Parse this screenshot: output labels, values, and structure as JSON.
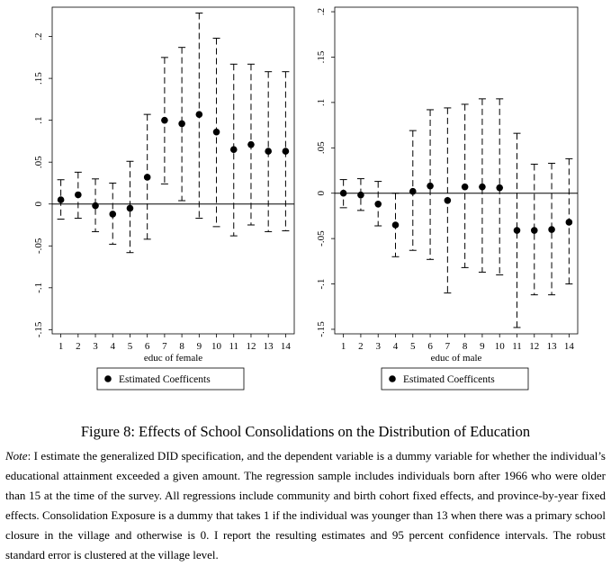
{
  "figure": {
    "title": "Figure 8: Effects of School Consolidations on the Distribution of Education",
    "note_lead": "Note",
    "note_text": ": I estimate the generalized DID specification, and the dependent variable is a dummy variable for whether the individual’s educational attainment exceeded a given amount. The regression sample includes individuals born after 1966 who were older than 15 at the time of the survey. All regressions include community and birth cohort fixed effects, and province-by-year fixed effects. Consolidation Exposure is a dummy that takes 1 if the individual was younger than 13 when there was a primary school closure in the village and otherwise is 0. I report the resulting estimates and 95 percent confidence intervals. The robust standard error is clustered at the village level."
  },
  "chart_data": [
    {
      "type": "scatter",
      "xlabel": "educ of female",
      "ylabel": "",
      "legend": "Estimated Coefficents",
      "legend_position": "bottom",
      "grid": false,
      "x": [
        1,
        2,
        3,
        4,
        5,
        6,
        7,
        8,
        9,
        10,
        11,
        12,
        13,
        14
      ],
      "ylim": [
        -0.155,
        0.235
      ],
      "yticks": [
        -0.15,
        -0.1,
        -0.05,
        0,
        0.05,
        0.1,
        0.15,
        0.2
      ],
      "ytick_labels": [
        "-.15",
        "-.1",
        "-.05",
        "0",
        ".05",
        ".1",
        ".15",
        ".2"
      ],
      "series": [
        {
          "estimate": [
            0.005,
            0.011,
            -0.002,
            -0.012,
            -0.005,
            0.032,
            0.1,
            0.096,
            0.107,
            0.086,
            0.065,
            0.071,
            0.063,
            0.063
          ],
          "ci_low": [
            -0.018,
            -0.017,
            -0.033,
            -0.048,
            -0.058,
            -0.042,
            0.024,
            0.004,
            -0.017,
            -0.027,
            -0.038,
            -0.025,
            -0.033,
            -0.032
          ],
          "ci_high": [
            0.029,
            0.038,
            0.03,
            0.025,
            0.051,
            0.107,
            0.175,
            0.187,
            0.228,
            0.198,
            0.167,
            0.167,
            0.158,
            0.158
          ]
        }
      ]
    },
    {
      "type": "scatter",
      "xlabel": "educ of male",
      "ylabel": "",
      "legend": "Estimated Coefficents",
      "legend_position": "bottom",
      "grid": false,
      "x": [
        1,
        2,
        3,
        4,
        5,
        6,
        7,
        8,
        9,
        10,
        11,
        12,
        13,
        14
      ],
      "ylim": [
        -0.155,
        0.205
      ],
      "yticks": [
        -0.15,
        -0.1,
        -0.05,
        0,
        0.05,
        0.1,
        0.15,
        0.2
      ],
      "ytick_labels": [
        "-.15",
        "-.1",
        "-.05",
        "0",
        ".05",
        ".1",
        ".15",
        ".2"
      ],
      "series": [
        {
          "estimate": [
            0.0,
            -0.002,
            -0.012,
            -0.035,
            0.002,
            0.008,
            -0.008,
            0.007,
            0.007,
            0.006,
            -0.041,
            -0.041,
            -0.04,
            -0.032
          ],
          "ci_low": [
            -0.016,
            -0.019,
            -0.036,
            -0.07,
            -0.063,
            -0.073,
            -0.11,
            -0.082,
            -0.087,
            -0.09,
            -0.148,
            -0.112,
            -0.112,
            -0.1
          ],
          "ci_high": [
            0.015,
            0.016,
            0.013,
            0.0,
            0.069,
            0.092,
            0.094,
            0.098,
            0.104,
            0.104,
            0.066,
            0.032,
            0.033,
            0.038
          ]
        }
      ]
    }
  ]
}
